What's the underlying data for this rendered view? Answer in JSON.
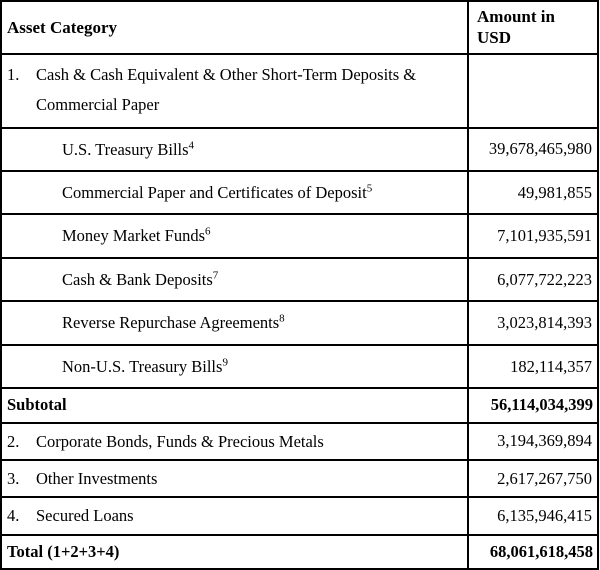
{
  "table": {
    "columns": [
      {
        "label": "Asset Category"
      },
      {
        "label": "Amount in USD"
      }
    ],
    "rows": [
      {
        "type": "cat1",
        "num": "1.",
        "label": "Cash & Cash Equivalent & Other Short-Term Deposits & Commercial Paper",
        "footnote": "",
        "amount": ""
      },
      {
        "type": "sub",
        "num": "",
        "label": "U.S. Treasury Bills",
        "footnote": "4",
        "amount": "39,678,465,980"
      },
      {
        "type": "sub",
        "num": "",
        "label": "Commercial Paper and Certificates of Deposit",
        "footnote": "5",
        "amount": "49,981,855"
      },
      {
        "type": "sub",
        "num": "",
        "label": "Money Market Funds",
        "footnote": "6",
        "amount": "7,101,935,591"
      },
      {
        "type": "sub",
        "num": "",
        "label": "Cash & Bank Deposits",
        "footnote": "7",
        "amount": "6,077,722,223"
      },
      {
        "type": "sub",
        "num": "",
        "label": "Reverse Repurchase Agreements",
        "footnote": "8",
        "amount": "3,023,814,393"
      },
      {
        "type": "sub",
        "num": "",
        "label": "Non-U.S. Treasury Bills",
        "footnote": "9",
        "amount": "182,114,357"
      },
      {
        "type": "bold",
        "num": "",
        "label": "Subtotal",
        "footnote": "",
        "amount": "56,114,034,399"
      },
      {
        "type": "cat",
        "num": "2.",
        "label": "Corporate Bonds, Funds & Precious Metals",
        "footnote": "",
        "amount": "3,194,369,894"
      },
      {
        "type": "cat",
        "num": "3.",
        "label": "Other Investments",
        "footnote": "",
        "amount": "2,617,267,750"
      },
      {
        "type": "cat",
        "num": "4.",
        "label": "Secured Loans",
        "footnote": "",
        "amount": "6,135,946,415"
      },
      {
        "type": "bold",
        "num": "",
        "label": "Total (1+2+3+4)",
        "footnote": "",
        "amount": "68,061,618,458"
      }
    ],
    "colors": {
      "border": "#000000",
      "text": "#000000",
      "background": "#ffffff"
    }
  }
}
